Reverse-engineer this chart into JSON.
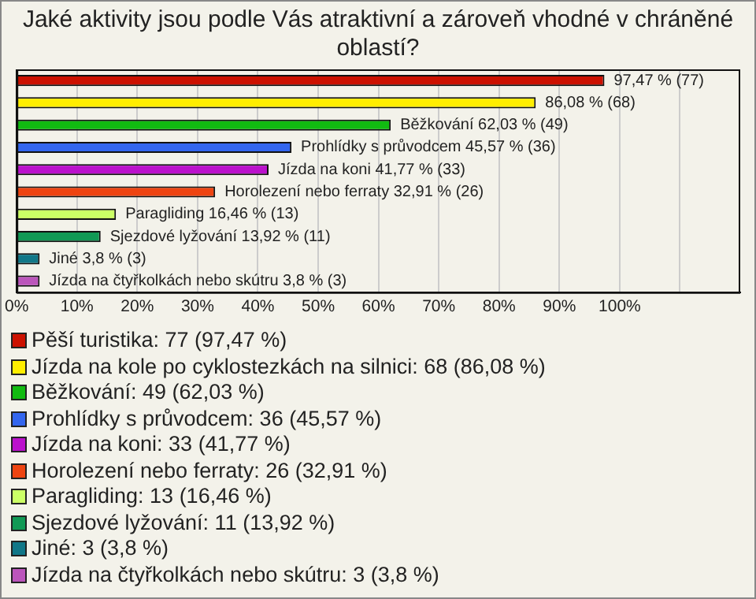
{
  "chart_data": {
    "type": "bar",
    "orientation": "horizontal",
    "title": "Jaké aktivity jsou podle Vás atraktivní a zároveň vhodné v chráněné oblastí?",
    "categories": [
      null,
      null,
      null,
      null,
      null,
      null,
      null,
      null,
      null,
      null
    ],
    "series": [
      {
        "name": "Pěší turistika: 77 (97,47 %)",
        "color": "#cc1100",
        "values": [
          97.47,
          null,
          null,
          null,
          null,
          null,
          null,
          null,
          null,
          null
        ],
        "value_labels": [
          "97,47 % (77)",
          null,
          null,
          null,
          null,
          null,
          null,
          null,
          null,
          null
        ]
      },
      {
        "name": "Jízda na kole po cyklostezkách na silnici: 68 (86,08 %)",
        "color": "#ffee00",
        "values": [
          null,
          86.08,
          null,
          null,
          null,
          null,
          null,
          null,
          null,
          null
        ],
        "value_labels": [
          null,
          "86,08 % (68)",
          null,
          null,
          null,
          null,
          null,
          null,
          null,
          null
        ]
      },
      {
        "name": "Běžkování: 49 (62,03 %)",
        "color": "#11bb11",
        "values": [
          null,
          null,
          62.03,
          null,
          null,
          null,
          null,
          null,
          null,
          null
        ],
        "value_labels": [
          null,
          null,
          "Běžkování 62,03 % (49)",
          null,
          null,
          null,
          null,
          null,
          null,
          null
        ]
      },
      {
        "name": "Prohlídky s průvodcem: 36 (45,57 %)",
        "color": "#3366ee",
        "values": [
          null,
          null,
          null,
          45.57,
          null,
          null,
          null,
          null,
          null,
          null
        ],
        "value_labels": [
          null,
          null,
          null,
          "Prohlídky s průvodcem 45,57 % (36)",
          null,
          null,
          null,
          null,
          null,
          null
        ]
      },
      {
        "name": "Jízda na koni: 33 (41,77 %)",
        "color": "#bb11cc",
        "values": [
          null,
          null,
          null,
          null,
          41.77,
          null,
          null,
          null,
          null,
          null
        ],
        "value_labels": [
          null,
          null,
          null,
          null,
          "Jízda na koni 41,77 % (33)",
          null,
          null,
          null,
          null,
          null
        ]
      },
      {
        "name": "Horolezení nebo ferraty: 26 (32,91 %)",
        "color": "#ee4411",
        "values": [
          null,
          null,
          null,
          null,
          null,
          32.91,
          null,
          null,
          null,
          null
        ],
        "value_labels": [
          null,
          null,
          null,
          null,
          null,
          "Horolezení nebo ferraty 32,91 % (26)",
          null,
          null,
          null,
          null
        ]
      },
      {
        "name": "Paragliding: 13 (16,46 %)",
        "color": "#ccff66",
        "values": [
          null,
          null,
          null,
          null,
          null,
          null,
          16.46,
          null,
          null,
          null
        ],
        "value_labels": [
          null,
          null,
          null,
          null,
          null,
          null,
          "Paragliding 16,46 % (13)",
          null,
          null,
          null
        ]
      },
      {
        "name": "Sjezdové lyžování: 11 (13,92 %)",
        "color": "#119955",
        "values": [
          null,
          null,
          null,
          null,
          null,
          null,
          null,
          13.92,
          null,
          null
        ],
        "value_labels": [
          null,
          null,
          null,
          null,
          null,
          null,
          null,
          "Sjezdové lyžování 13,92 % (11)",
          null,
          null
        ]
      },
      {
        "name": "Jiné: 3 (3,8 %)",
        "color": "#117788",
        "values": [
          null,
          null,
          null,
          null,
          null,
          null,
          null,
          null,
          3.8,
          null
        ],
        "value_labels": [
          null,
          null,
          null,
          null,
          null,
          null,
          null,
          null,
          "Jiné 3,8 % (3)",
          null
        ]
      },
      {
        "name": "Jízda na čtyřkolkách nebo skútru: 3 (3,8 %)",
        "color": "#bb55bb",
        "values": [
          null,
          null,
          null,
          null,
          null,
          null,
          null,
          null,
          null,
          3.8
        ],
        "value_labels": [
          null,
          null,
          null,
          null,
          null,
          null,
          null,
          null,
          null,
          "Jízda na čtyřkolkách nebo skútru 3,8 % (3)"
        ]
      }
    ],
    "xlim": [
      0,
      120
    ],
    "xticks": [
      {
        "value": 0,
        "label": "0%"
      },
      {
        "value": 10,
        "label": "10%"
      },
      {
        "value": 20,
        "label": "20%"
      },
      {
        "value": 30,
        "label": "30%"
      },
      {
        "value": 40,
        "label": "40%"
      },
      {
        "value": 50,
        "label": "50%"
      },
      {
        "value": 60,
        "label": "60%"
      },
      {
        "value": 70,
        "label": "70%"
      },
      {
        "value": 80,
        "label": "80%"
      },
      {
        "value": 90,
        "label": "90%"
      },
      {
        "value": 100,
        "label": "100%"
      },
      {
        "value": 110,
        "label": null
      }
    ],
    "grid": "x",
    "legend": "bottom"
  }
}
